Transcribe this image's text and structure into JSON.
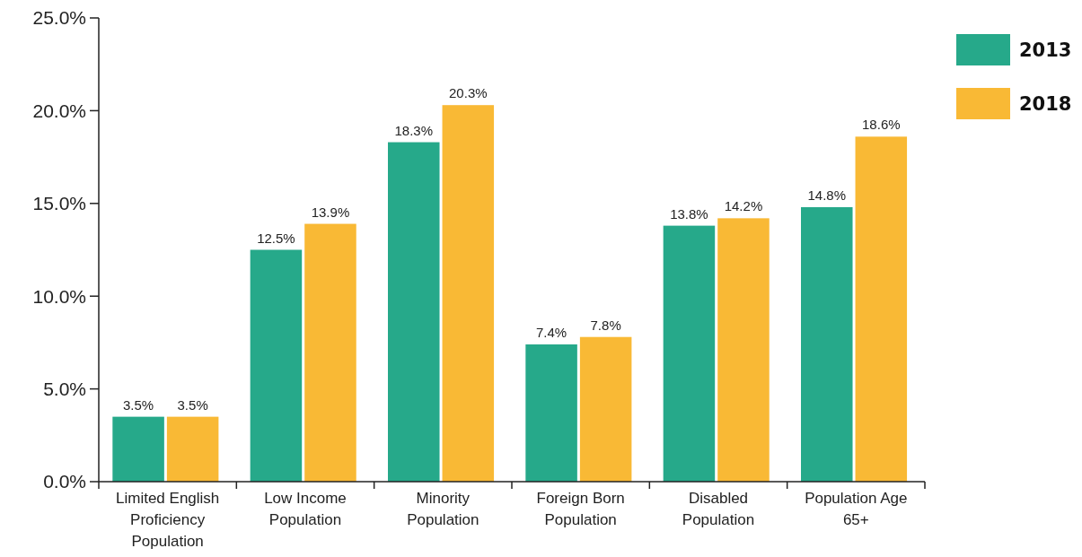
{
  "chart_data": {
    "type": "bar",
    "categories": [
      "Limited English Proficiency Population",
      "Low Income Population",
      "Minority Population",
      "Foreign Born Population",
      "Disabled Population",
      "Population Age 65+"
    ],
    "series": [
      {
        "name": "2013",
        "color": "#26a98a",
        "values": [
          3.5,
          12.5,
          18.3,
          7.4,
          13.8,
          14.8
        ],
        "value_labels": [
          "3.5%",
          "12.5%",
          "18.3%",
          "7.4%",
          "13.8%",
          "14.8%"
        ]
      },
      {
        "name": "2018",
        "color": "#f9b935",
        "values": [
          3.5,
          13.9,
          20.3,
          7.8,
          14.2,
          18.6
        ],
        "value_labels": [
          "3.5%",
          "13.9%",
          "20.3%",
          "7.8%",
          "14.2%",
          "18.6%"
        ]
      }
    ],
    "ylim": [
      0,
      25
    ],
    "yticks": [
      {
        "value": 0,
        "label": "0.0%"
      },
      {
        "value": 5,
        "label": "5.0%"
      },
      {
        "value": 10,
        "label": "10.0%"
      },
      {
        "value": 15,
        "label": "15.0%"
      },
      {
        "value": 20,
        "label": "20.0%"
      },
      {
        "value": 25,
        "label": "25.0%"
      }
    ],
    "grid": false,
    "legend": "top right"
  }
}
